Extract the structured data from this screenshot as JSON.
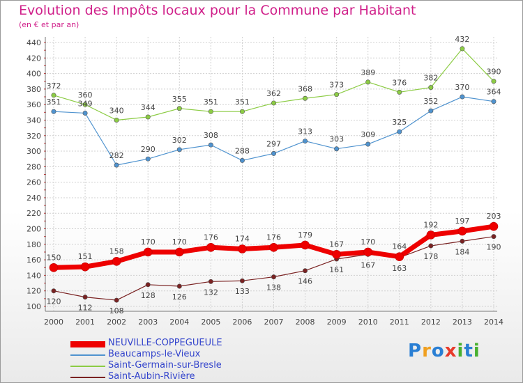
{
  "chart_data": {
    "type": "line",
    "title": "Evolution des Impôts locaux pour la Commune par Habitant",
    "subtitle": "(en € et par an)",
    "xlabel": "",
    "ylabel": "",
    "ylim": [
      100,
      440
    ],
    "yticks": [
      100,
      120,
      140,
      160,
      180,
      200,
      220,
      240,
      260,
      280,
      300,
      320,
      340,
      360,
      380,
      400,
      420,
      440
    ],
    "x": [
      "2000",
      "2001",
      "2002",
      "2003",
      "2004",
      "2005",
      "2006",
      "2007",
      "2008",
      "2009",
      "2010",
      "2011",
      "2012",
      "2013",
      "2014"
    ],
    "legend_position": "bottom-left",
    "series": [
      {
        "name": "NEUVILLE-COPPEGUEULE",
        "color": "#ee0000",
        "values": [
          150,
          151,
          158,
          170,
          170,
          176,
          174,
          176,
          179,
          167,
          170,
          164,
          192,
          197,
          203
        ],
        "labels": [
          "150",
          "151",
          "158",
          "170",
          "170",
          "176",
          "174",
          "176",
          "179",
          "167",
          "170",
          "164",
          "192",
          "197",
          "203"
        ]
      },
      {
        "name": "Beaucamps-le-Vieux",
        "color": "#4f93cf",
        "values": [
          351,
          349,
          282,
          290,
          302,
          308,
          288,
          297,
          313,
          303,
          309,
          325,
          352,
          370,
          364
        ],
        "labels": [
          "351",
          "349",
          "282",
          "290",
          "302",
          "308",
          "288",
          "297",
          "313",
          "303",
          "309",
          "325",
          "352",
          "370",
          "364"
        ]
      },
      {
        "name": "Saint-Germain-sur-Bresle",
        "color": "#8ccc44",
        "values": [
          372,
          360,
          340,
          344,
          355,
          351,
          351,
          362,
          368,
          373,
          389,
          376,
          382,
          432,
          390
        ],
        "labels": [
          "372",
          "360",
          "340",
          "344",
          "355",
          "351",
          "351",
          "362",
          "368",
          "373",
          "389",
          "376",
          "382",
          "432",
          "390"
        ]
      },
      {
        "name": "Saint-Aubin-Rivière",
        "color": "#7a2222",
        "values": [
          120,
          112,
          108,
          128,
          126,
          132,
          133,
          138,
          146,
          161,
          167,
          163,
          178,
          184,
          190
        ],
        "labels": [
          "120",
          "112",
          "108",
          "128",
          "126",
          "132",
          "133",
          "138",
          "146",
          "161",
          "167",
          "163",
          "178",
          "184",
          "190"
        ]
      }
    ]
  },
  "logo": {
    "text": "Proxiti",
    "letters": [
      "P",
      "r",
      "o",
      "x",
      "i",
      "t",
      "i"
    ],
    "colors": [
      "#2a7fd4",
      "#f0a020",
      "#2a7fd4",
      "#e83a2a",
      "#48b030",
      "#2a7fd4",
      "#48b030"
    ]
  }
}
